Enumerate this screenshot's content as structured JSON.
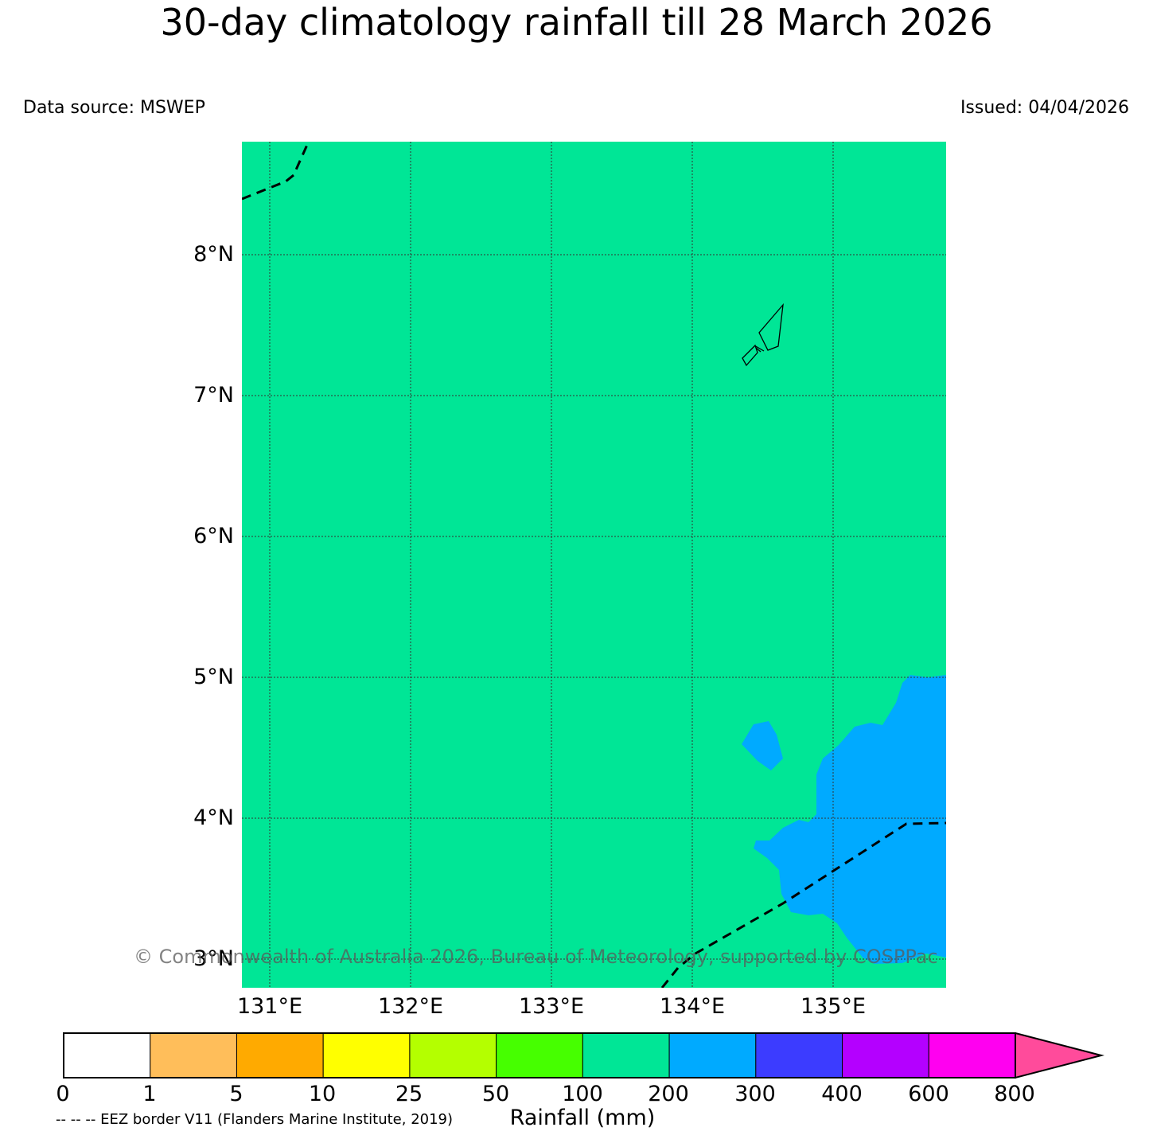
{
  "title": "30-day climatology rainfall till 28 March 2026",
  "data_source": "Data source: MSWEP",
  "issued": "Issued: 04/04/2026",
  "map": {
    "lat_labels": [
      "8°N",
      "7°N",
      "6°N",
      "5°N",
      "4°N",
      "3°N"
    ],
    "lon_labels": [
      "131°E",
      "132°E",
      "133°E",
      "134°E",
      "135°E"
    ],
    "background_color": "#00e696",
    "high_rain_color": "#00aaff",
    "copyright": "© Commonwealth of Australia 2026, Bureau of Meteorology, supported by COSPPac"
  },
  "colorbar": {
    "colors": [
      "#ffffff",
      "#ffbe5a",
      "#ffaa00",
      "#ffff00",
      "#b4ff00",
      "#46ff00",
      "#00e696",
      "#00aaff",
      "#3c3cff",
      "#b400ff",
      "#ff00f0",
      "#ff4b9b"
    ],
    "ticks": [
      "0",
      "1",
      "5",
      "10",
      "25",
      "50",
      "100",
      "200",
      "300",
      "400",
      "600",
      "800"
    ],
    "label": "Rainfall (mm)"
  },
  "eez_note": "-- -- -- EEZ border V11 (Flanders Marine Institute, 2019)"
}
